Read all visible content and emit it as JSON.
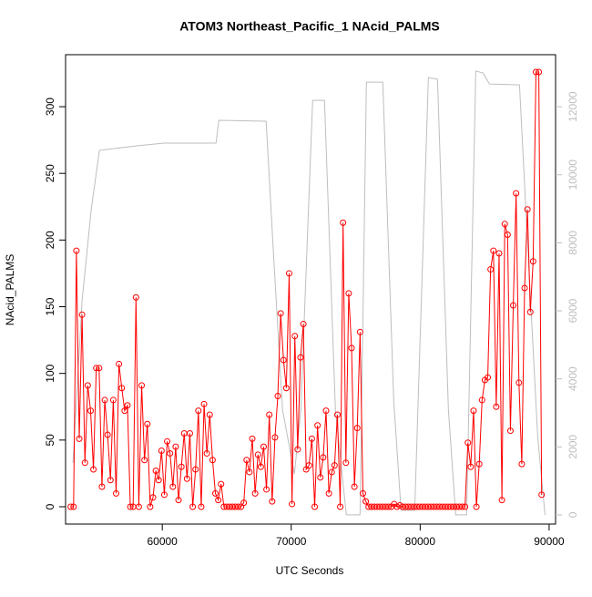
{
  "chart_data": {
    "type": "line",
    "title": "ATOM3 Northeast_Pacific_1 NAcid_PALMS",
    "x_label": "UTC Seconds",
    "y_label": "NAcid_PALMS",
    "xlim": [
      52500,
      90500
    ],
    "xticks": [
      60000,
      70000,
      80000,
      90000
    ],
    "ylim": [
      -13,
      339
    ],
    "yticks": [
      0,
      50,
      100,
      150,
      200,
      250,
      300
    ],
    "y2lim": [
      -270,
      13530
    ],
    "y2ticks": [
      0,
      2000,
      4000,
      6000,
      8000,
      10000,
      12000
    ],
    "series": [
      {
        "color": "#ff0000",
        "markers": true,
        "x": [
          52900,
          53120,
          53340,
          53560,
          53780,
          54000,
          54220,
          54440,
          54660,
          54880,
          55100,
          55320,
          55540,
          55760,
          55980,
          56200,
          56420,
          56640,
          56860,
          57080,
          57300,
          57520,
          57740,
          57960,
          58180,
          58400,
          58620,
          58840,
          59060,
          59280,
          59500,
          59720,
          59940,
          60160,
          60380,
          60600,
          60820,
          61040,
          61260,
          61480,
          61700,
          61920,
          62140,
          62360,
          62580,
          62800,
          63020,
          63240,
          63460,
          63680,
          63900,
          64120,
          64340,
          64560,
          64780,
          65000,
          65220,
          65440,
          65660,
          65880,
          66100,
          66320,
          66540,
          66760,
          66980,
          67200,
          67420,
          67640,
          67860,
          68080,
          68300,
          68520,
          68740,
          68960,
          69180,
          69400,
          69620,
          69840,
          70060,
          70280,
          70500,
          70720,
          70940,
          71160,
          71380,
          71600,
          71820,
          72040,
          72260,
          72480,
          72700,
          72920,
          73140,
          73360,
          73580,
          73800,
          74020,
          74240,
          74460,
          74680,
          74900,
          75120,
          75340,
          75560,
          75780,
          76000,
          76220,
          76440,
          76660,
          76880,
          77100,
          77320,
          77540,
          77760,
          77980,
          78200,
          78420,
          78640,
          78860,
          79080,
          79300,
          79520,
          79740,
          79960,
          80180,
          80400,
          80620,
          80840,
          81060,
          81280,
          81500,
          81720,
          81940,
          82160,
          82380,
          82600,
          82820,
          83040,
          83260,
          83480,
          83700,
          83920,
          84140,
          84360,
          84580,
          84800,
          85020,
          85240,
          85460,
          85680,
          85900,
          86120,
          86340,
          86560,
          86780,
          87000,
          87220,
          87440,
          87660,
          87880,
          88100,
          88320,
          88540,
          88760,
          88980,
          89200,
          89420
        ],
        "values": [
          0,
          0,
          192,
          51,
          144,
          33,
          91,
          72,
          28,
          104,
          104,
          15,
          80,
          54,
          20,
          80,
          10,
          107,
          89,
          72,
          76,
          0,
          0,
          157,
          0,
          91,
          35,
          62,
          0,
          7,
          27,
          20,
          42,
          9,
          49,
          40,
          15,
          45,
          5,
          30,
          55,
          21,
          55,
          0,
          28,
          72,
          0,
          77,
          40,
          69,
          35,
          10,
          5,
          17,
          0,
          0,
          0,
          0,
          0,
          0,
          0,
          3,
          35,
          26,
          51,
          10,
          39,
          30,
          45,
          13,
          69,
          4,
          52,
          83,
          145,
          110,
          89,
          175,
          2,
          128,
          43,
          112,
          137,
          28,
          31,
          51,
          0,
          61,
          22,
          37,
          72,
          10,
          26,
          31,
          69,
          0,
          213,
          33,
          160,
          119,
          15,
          59,
          131,
          10,
          4,
          0,
          0,
          0,
          0,
          0,
          0,
          0,
          0,
          0,
          2,
          0,
          1,
          0,
          0,
          0,
          0,
          0,
          0,
          0,
          0,
          0,
          0,
          0,
          0,
          0,
          0,
          0,
          0,
          0,
          0,
          0,
          0,
          0,
          0,
          0,
          48,
          30,
          72,
          0,
          32,
          80,
          95,
          97,
          178,
          192,
          75,
          190,
          5,
          212,
          204,
          57,
          151,
          235,
          93,
          32,
          164,
          223,
          146,
          184,
          326,
          326,
          9
        ]
      },
      {
        "color": "#bebebe",
        "axis": "y2",
        "x": [
          53074,
          53780,
          54488,
          55124,
          56254,
          58021,
          60141,
          64170,
          64382,
          68056,
          68622,
          69329,
          70247,
          70742,
          71661,
          72580,
          73428,
          74276,
          75336,
          75830,
          77102,
          77951,
          78516,
          79576,
          80636,
          81343,
          82191,
          82756,
          83604,
          84311,
          84876,
          85371,
          87703,
          88269,
          89117,
          89682
        ],
        "values": [
          1527,
          6295,
          8974,
          10715,
          10769,
          10850,
          10930,
          10930,
          11600,
          11573,
          7688,
          3080,
          1205,
          3080,
          12188,
          12188,
          3080,
          0,
          0,
          12724,
          12724,
          3348,
          134,
          134,
          12858,
          12805,
          3080,
          0,
          0,
          13046,
          12992,
          12670,
          12644,
          8438,
          2277,
          0
        ]
      }
    ]
  }
}
